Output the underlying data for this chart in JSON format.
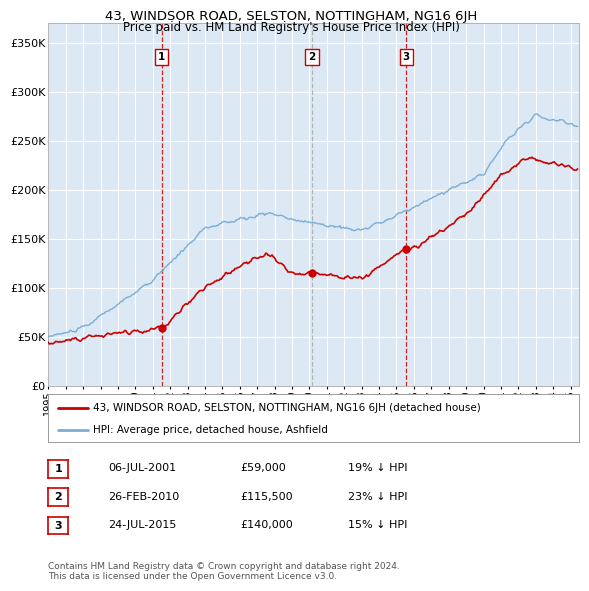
{
  "title": "43, WINDSOR ROAD, SELSTON, NOTTINGHAM, NG16 6JH",
  "subtitle": "Price paid vs. HM Land Registry's House Price Index (HPI)",
  "ytick_vals": [
    0,
    50000,
    100000,
    150000,
    200000,
    250000,
    300000,
    350000
  ],
  "ylim": [
    0,
    370000
  ],
  "xlim_start": 1995.0,
  "xlim_end": 2025.5,
  "background_color": "#dce9f5",
  "grid_color": "#ffffff",
  "hpi_color": "#7aaed6",
  "price_color": "#cc0000",
  "transactions": [
    {
      "label": "1",
      "date_x": 2001.52,
      "price": 59000,
      "vline_color": "#cc0000",
      "date_str": "06-JUL-2001",
      "price_str": "£59,000",
      "hpi_str": "19% ↓ HPI"
    },
    {
      "label": "2",
      "date_x": 2010.15,
      "price": 115500,
      "vline_color": "#aaaaaa",
      "date_str": "26-FEB-2010",
      "price_str": "£115,500",
      "hpi_str": "23% ↓ HPI"
    },
    {
      "label": "3",
      "date_x": 2015.56,
      "price": 140000,
      "vline_color": "#cc0000",
      "date_str": "24-JUL-2015",
      "price_str": "£140,000",
      "hpi_str": "15% ↓ HPI"
    }
  ],
  "legend_line1": "43, WINDSOR ROAD, SELSTON, NOTTINGHAM, NG16 6JH (detached house)",
  "legend_line2": "HPI: Average price, detached house, Ashfield",
  "footer": "Contains HM Land Registry data © Crown copyright and database right 2024.\nThis data is licensed under the Open Government Licence v3.0.",
  "xtick_years": [
    1995,
    1996,
    1997,
    1998,
    1999,
    2000,
    2001,
    2002,
    2003,
    2004,
    2005,
    2006,
    2007,
    2008,
    2009,
    2010,
    2011,
    2012,
    2013,
    2014,
    2015,
    2016,
    2017,
    2018,
    2019,
    2020,
    2021,
    2022,
    2023,
    2024,
    2025
  ]
}
